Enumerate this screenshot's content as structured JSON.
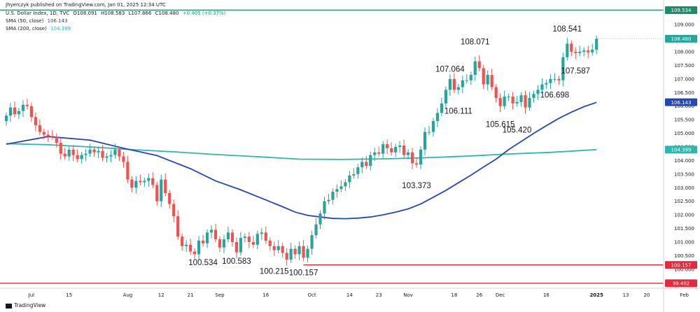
{
  "header": {
    "published": "Jhyerczyk published on TradingView.com, Jan 01, 2025 12:34 UTC",
    "symbol": "U.S. Dollar Index, 1D, TVC",
    "ohlc": [
      "O108.091",
      "H108.583",
      "L107.866",
      "C108.480",
      "+0.405 (+0.37%)"
    ],
    "sma50_label": "SMA (50, close)",
    "sma50_value": "106.143",
    "sma200_label": "SMA (200, close)",
    "sma200_value": "104.399"
  },
  "footer": {
    "brand": "TradingView"
  },
  "colors": {
    "up": "#26a69a",
    "down": "#ef5350",
    "sma50": "#2447b8",
    "sma200": "#2ab7b0",
    "top_line": "#1b8c6c",
    "level": "#e8283c"
  },
  "chart_data": {
    "type": "candlestick",
    "y_range": [
      99.3,
      109.7
    ],
    "y_axis_labels": [
      "109.000",
      "108.500",
      "108.000",
      "107.500",
      "107.000",
      "106.500",
      "106.000",
      "105.500",
      "105.000",
      "104.500",
      "104.000",
      "103.500",
      "103.000",
      "102.500",
      "102.000",
      "101.500",
      "101.000",
      "100.500",
      "100.000"
    ],
    "x_axis_labels": [
      {
        "label": "Jul",
        "bar": 6
      },
      {
        "label": "15",
        "bar": 15
      },
      {
        "label": "Aug",
        "bar": 29
      },
      {
        "label": "12",
        "bar": 37
      },
      {
        "label": "21",
        "bar": 44
      },
      {
        "label": "Sep",
        "bar": 51
      },
      {
        "label": "16",
        "bar": 62
      },
      {
        "label": "Oct",
        "bar": 73
      },
      {
        "label": "14",
        "bar": 82
      },
      {
        "label": "23",
        "bar": 89
      },
      {
        "label": "Nov",
        "bar": 96
      },
      {
        "label": "18",
        "bar": 107
      },
      {
        "label": "26",
        "bar": 113
      },
      {
        "label": "Dec",
        "bar": 118
      },
      {
        "label": "16",
        "bar": 129
      },
      {
        "label": "2025",
        "bar": 141
      },
      {
        "label": "13",
        "bar": 148
      },
      {
        "label": "20",
        "bar": 153
      },
      {
        "label": "Feb",
        "bar": 162
      }
    ],
    "bold_x_labels": [
      "2025"
    ],
    "price_tags": [
      {
        "label": "109.534",
        "value": 109.534,
        "color": "#1b8c6c"
      },
      {
        "label": "108.480",
        "value": 108.48,
        "color": "#26a69a"
      },
      {
        "label": "106.143",
        "value": 106.143,
        "color": "#2447b8"
      },
      {
        "label": "104.399",
        "value": 104.399,
        "color": "#2ab7b0"
      },
      {
        "label": "100.157",
        "value": 100.157,
        "color": "#e8283c"
      },
      {
        "label": "99.482",
        "value": 99.482,
        "color": "#e8283c"
      }
    ],
    "horizontal_lines": [
      {
        "value": 109.534,
        "color": "#1b8c6c"
      },
      {
        "value": 100.157,
        "color": "#e8283c",
        "from_bar": 71
      },
      {
        "value": 99.482,
        "color": "#e8283c"
      }
    ],
    "annotations": [
      {
        "label": "100.534",
        "bar": 47,
        "value": 100.534
      },
      {
        "label": "100.583",
        "bar": 55,
        "value": 100.583
      },
      {
        "label": "100.215",
        "bar": 64,
        "value": 100.215
      },
      {
        "label": "100.157",
        "bar": 71,
        "value": 100.157
      },
      {
        "label": "103.373",
        "bar": 98,
        "value": 103.373
      },
      {
        "label": "107.064",
        "bar": 106,
        "value": 107.064
      },
      {
        "label": "106.111",
        "bar": 108,
        "value": 106.111
      },
      {
        "label": "108.071",
        "bar": 112,
        "value": 108.071
      },
      {
        "label": "105.615",
        "bar": 118,
        "value": 105.615
      },
      {
        "label": "105.420",
        "bar": 122,
        "value": 105.42
      },
      {
        "label": "106.698",
        "bar": 131,
        "value": 106.698
      },
      {
        "label": "108.541",
        "bar": 134,
        "value": 108.541
      },
      {
        "label": "107.587",
        "bar": 136,
        "value": 107.587
      }
    ],
    "closes": [
      105.65,
      105.95,
      105.7,
      105.82,
      106.05,
      106.0,
      105.6,
      105.3,
      105.05,
      104.95,
      104.9,
      104.88,
      104.65,
      104.25,
      104.15,
      104.4,
      104.2,
      104.05,
      104.2,
      104.25,
      104.4,
      104.3,
      104.35,
      104.1,
      104.15,
      104.2,
      104.4,
      104.15,
      103.95,
      103.3,
      103.0,
      103.25,
      103.2,
      103.25,
      103.35,
      103.1,
      102.5,
      103.3,
      102.8,
      102.4,
      101.95,
      101.2,
      100.85,
      100.9,
      100.65,
      100.55,
      101.05,
      100.95,
      101.35,
      101.45,
      101.1,
      100.8,
      101.1,
      101.35,
      101.0,
      100.62,
      101.15,
      101.2,
      101.0,
      100.9,
      101.3,
      101.35,
      101.05,
      100.85,
      100.7,
      100.85,
      100.6,
      100.35,
      100.75,
      100.55,
      100.85,
      100.42,
      100.75,
      101.25,
      101.65,
      102.05,
      102.5,
      102.55,
      102.85,
      102.95,
      103.05,
      103.2,
      103.45,
      103.5,
      103.75,
      103.95,
      103.8,
      104.2,
      104.3,
      104.25,
      104.6,
      104.45,
      104.3,
      104.5,
      104.55,
      104.2,
      104.3,
      103.9,
      103.85,
      104.4,
      105.05,
      105.05,
      105.45,
      105.75,
      106.1,
      106.6,
      107.0,
      106.6,
      106.7,
      106.95,
      106.95,
      107.15,
      107.65,
      107.4,
      106.8,
      107.15,
      106.7,
      106.3,
      106.0,
      106.35,
      106.35,
      106.1,
      106.15,
      106.4,
      105.95,
      106.3,
      106.45,
      106.6,
      106.8,
      106.85,
      107.0,
      107.0,
      106.95,
      107.8,
      108.3,
      108.0,
      107.95,
      108.0,
      108.05,
      107.98,
      108.08,
      108.48
    ],
    "sma50": [
      [
        0,
        104.6
      ],
      [
        10,
        104.88
      ],
      [
        20,
        104.75
      ],
      [
        28,
        104.45
      ],
      [
        36,
        104.18
      ],
      [
        44,
        103.7
      ],
      [
        50,
        103.25
      ],
      [
        56,
        102.92
      ],
      [
        62,
        102.55
      ],
      [
        66,
        102.3
      ],
      [
        69,
        102.1
      ],
      [
        72,
        101.98
      ],
      [
        75,
        101.92
      ],
      [
        78,
        101.87
      ],
      [
        81,
        101.86
      ],
      [
        84,
        101.88
      ],
      [
        87,
        101.92
      ],
      [
        90,
        102.0
      ],
      [
        93,
        102.1
      ],
      [
        96,
        102.22
      ],
      [
        99,
        102.4
      ],
      [
        102,
        102.65
      ],
      [
        105,
        102.9
      ],
      [
        108,
        103.18
      ],
      [
        111,
        103.46
      ],
      [
        114,
        103.76
      ],
      [
        117,
        104.05
      ],
      [
        120,
        104.4
      ],
      [
        123,
        104.7
      ],
      [
        126,
        105.0
      ],
      [
        129,
        105.28
      ],
      [
        132,
        105.55
      ],
      [
        135,
        105.78
      ],
      [
        138,
        105.98
      ],
      [
        141,
        106.14
      ]
    ],
    "sma200": [
      [
        0,
        104.62
      ],
      [
        10,
        104.58
      ],
      [
        20,
        104.5
      ],
      [
        30,
        104.4
      ],
      [
        40,
        104.32
      ],
      [
        50,
        104.22
      ],
      [
        60,
        104.14
      ],
      [
        70,
        104.05
      ],
      [
        80,
        104.04
      ],
      [
        90,
        104.06
      ],
      [
        100,
        104.1
      ],
      [
        110,
        104.16
      ],
      [
        120,
        104.24
      ],
      [
        130,
        104.3
      ],
      [
        141,
        104.4
      ]
    ]
  }
}
